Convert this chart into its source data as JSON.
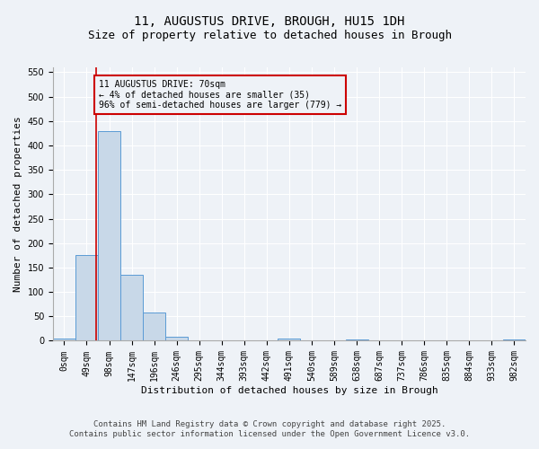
{
  "title_line1": "11, AUGUSTUS DRIVE, BROUGH, HU15 1DH",
  "title_line2": "Size of property relative to detached houses in Brough",
  "xlabel": "Distribution of detached houses by size in Brough",
  "ylabel": "Number of detached properties",
  "bar_labels": [
    "0sqm",
    "49sqm",
    "98sqm",
    "147sqm",
    "196sqm",
    "246sqm",
    "295sqm",
    "344sqm",
    "393sqm",
    "442sqm",
    "491sqm",
    "540sqm",
    "589sqm",
    "638sqm",
    "687sqm",
    "737sqm",
    "786sqm",
    "835sqm",
    "884sqm",
    "933sqm",
    "982sqm"
  ],
  "bar_values": [
    5,
    175,
    430,
    135,
    58,
    8,
    0,
    0,
    0,
    0,
    5,
    0,
    0,
    3,
    0,
    0,
    0,
    0,
    0,
    0,
    3
  ],
  "bar_color": "#c8d8e8",
  "bar_edge_color": "#5b9bd5",
  "ylim": [
    0,
    560
  ],
  "yticks": [
    0,
    50,
    100,
    150,
    200,
    250,
    300,
    350,
    400,
    450,
    500,
    550
  ],
  "property_line_x": 1.43,
  "property_line_color": "#cc0000",
  "annotation_text": "11 AUGUSTUS DRIVE: 70sqm\n← 4% of detached houses are smaller (35)\n96% of semi-detached houses are larger (779) →",
  "annotation_box_color": "#cc0000",
  "annotation_text_color": "#000000",
  "footer_line1": "Contains HM Land Registry data © Crown copyright and database right 2025.",
  "footer_line2": "Contains public sector information licensed under the Open Government Licence v3.0.",
  "background_color": "#eef2f7",
  "grid_color": "#ffffff",
  "title_fontsize": 10,
  "subtitle_fontsize": 9,
  "axis_label_fontsize": 8,
  "tick_fontsize": 7,
  "footer_fontsize": 6.5
}
